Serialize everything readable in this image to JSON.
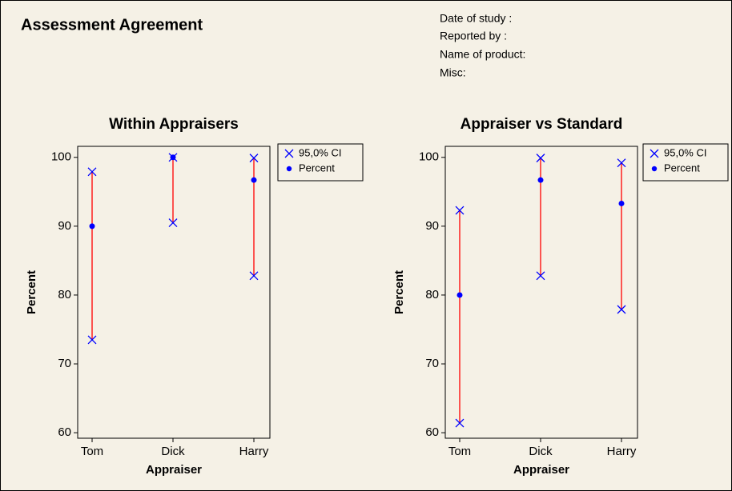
{
  "header": {
    "title": "Assessment Agreement",
    "info": [
      "Date of study :",
      "Reported by :",
      "Name of product:",
      "Misc:"
    ]
  },
  "chart_data": [
    {
      "type": "interval",
      "title": "Within Appraisers",
      "x_label": "Appraiser",
      "y_label": "Percent",
      "categories": [
        "Tom",
        "Dick",
        "Harry"
      ],
      "series": [
        {
          "name": "95,0% CI",
          "color": "#0000ff",
          "line_color": "#ff0000",
          "lower": [
            73.5,
            90.5,
            82.8
          ],
          "upper": [
            97.9,
            100,
            99.9
          ]
        },
        {
          "name": "Percent",
          "color": "#0000ff",
          "values": [
            90,
            100,
            96.7
          ]
        }
      ],
      "ylim": [
        59.2,
        101.6
      ],
      "yticks": [
        60,
        70,
        80,
        90,
        100
      ]
    },
    {
      "type": "interval",
      "title": "Appraiser vs Standard",
      "x_label": "Appraiser",
      "y_label": "Percent",
      "categories": [
        "Tom",
        "Dick",
        "Harry"
      ],
      "series": [
        {
          "name": "95,0% CI",
          "color": "#0000ff",
          "line_color": "#ff0000",
          "lower": [
            61.4,
            82.8,
            77.9
          ],
          "upper": [
            92.3,
            99.9,
            99.2
          ]
        },
        {
          "name": "Percent",
          "color": "#0000ff",
          "values": [
            80,
            96.7,
            93.3
          ]
        }
      ],
      "ylim": [
        59.2,
        101.6
      ],
      "yticks": [
        60,
        70,
        80,
        90,
        100
      ]
    }
  ]
}
